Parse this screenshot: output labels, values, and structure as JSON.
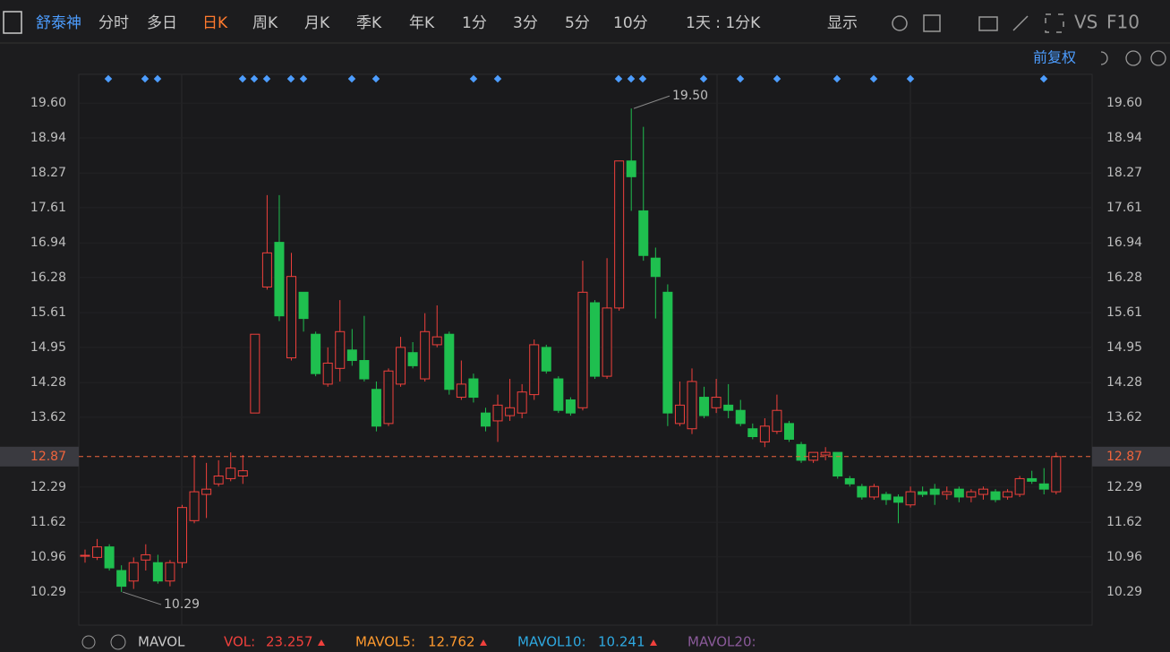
{
  "toolbar": {
    "stock": "舒泰神",
    "tabs": [
      "分时",
      "多日",
      "日K",
      "周K",
      "月K",
      "季K",
      "年K",
      "1分",
      "3分",
      "5分",
      "10分"
    ],
    "period": "1天 : 1分K",
    "display": "显示",
    "vs": "VS",
    "f10": "F10"
  },
  "adjust": "前复权",
  "chart_data": {
    "type": "candlestick",
    "categories": [
      null,
      null,
      null,
      null,
      null,
      null,
      null,
      null,
      null,
      null,
      null,
      null,
      null,
      null,
      null,
      null,
      null,
      null,
      null,
      null,
      null,
      null,
      null,
      null,
      null,
      null,
      null,
      null,
      null,
      null,
      null,
      null,
      null,
      null,
      null,
      null,
      null,
      null,
      null,
      null,
      null,
      null,
      null,
      null,
      null,
      null,
      null,
      null,
      null,
      null,
      null,
      null,
      null,
      null,
      null,
      null,
      null,
      null,
      null,
      null,
      null,
      null,
      null,
      null,
      null,
      null,
      null,
      null,
      null,
      null,
      null,
      null,
      null,
      null,
      null,
      null,
      null,
      null,
      null,
      null,
      null
    ],
    "open": [
      10.98,
      10.95,
      11.15,
      10.7,
      10.5,
      10.9,
      10.85,
      10.5,
      10.85,
      11.65,
      12.15,
      12.35,
      12.45,
      12.5,
      13.7,
      16.1,
      16.95,
      14.75,
      16.0,
      15.2,
      14.25,
      14.55,
      14.9,
      14.7,
      14.15,
      13.5,
      14.25,
      14.85,
      14.35,
      15.0,
      15.2,
      14.0,
      14.35,
      13.7,
      13.55,
      13.65,
      13.7,
      14.05,
      14.95,
      14.35,
      13.95,
      13.8,
      15.8,
      14.4,
      15.7,
      18.5,
      17.55,
      16.65,
      16.0,
      13.5,
      13.4,
      14.0,
      13.8,
      13.85,
      13.75,
      13.4,
      13.15,
      13.35,
      13.5,
      13.1,
      12.8,
      12.9,
      12.95,
      12.45,
      12.3,
      12.1,
      12.15,
      12.1,
      11.95,
      12.2,
      12.25,
      12.15,
      12.25,
      12.1,
      12.15,
      12.2,
      12.1,
      12.15,
      12.45,
      12.35,
      12.2
    ],
    "high": [
      11.1,
      11.3,
      11.2,
      10.8,
      10.95,
      11.2,
      11.0,
      10.9,
      11.95,
      12.9,
      12.75,
      12.8,
      12.95,
      12.9,
      15.2,
      17.85,
      17.85,
      16.75,
      16.0,
      15.25,
      14.95,
      15.85,
      15.3,
      15.55,
      14.3,
      14.55,
      15.15,
      15.05,
      15.6,
      15.75,
      15.25,
      14.7,
      14.45,
      13.8,
      14.05,
      14.35,
      14.25,
      15.1,
      15.0,
      14.4,
      14.0,
      16.6,
      15.85,
      16.65,
      18.5,
      19.5,
      19.15,
      16.85,
      16.15,
      14.3,
      14.55,
      14.2,
      14.35,
      14.25,
      13.95,
      13.5,
      13.6,
      14.05,
      13.55,
      13.15,
      12.95,
      13.05,
      12.95,
      12.5,
      12.35,
      12.35,
      12.2,
      12.15,
      12.3,
      12.3,
      12.35,
      12.3,
      12.3,
      12.25,
      12.3,
      12.25,
      12.25,
      12.5,
      12.6,
      12.65,
      12.95
    ],
    "low": [
      10.85,
      10.9,
      10.7,
      10.29,
      10.35,
      10.7,
      10.45,
      10.4,
      10.75,
      11.6,
      11.7,
      12.3,
      12.4,
      12.35,
      13.7,
      16.05,
      15.45,
      14.7,
      15.25,
      14.4,
      14.2,
      14.3,
      14.6,
      14.3,
      13.35,
      13.45,
      14.2,
      14.55,
      14.3,
      14.95,
      14.05,
      13.95,
      13.9,
      13.35,
      13.15,
      13.55,
      13.6,
      13.95,
      14.45,
      13.7,
      13.65,
      13.75,
      14.35,
      14.35,
      15.65,
      17.55,
      16.6,
      15.5,
      13.45,
      13.45,
      13.3,
      13.6,
      13.7,
      13.6,
      13.45,
      13.2,
      13.05,
      13.3,
      13.15,
      12.75,
      12.75,
      12.8,
      12.45,
      12.3,
      12.05,
      12.05,
      11.95,
      11.6,
      11.9,
      12.1,
      11.95,
      12.05,
      12.0,
      12.0,
      12.05,
      12.0,
      12.05,
      12.1,
      12.35,
      12.15,
      12.15
    ],
    "close": [
      10.99,
      11.15,
      10.75,
      10.4,
      10.85,
      11.0,
      10.5,
      10.85,
      11.9,
      12.2,
      12.25,
      12.5,
      12.65,
      12.6,
      15.2,
      16.75,
      15.55,
      16.3,
      15.5,
      14.45,
      14.65,
      15.25,
      14.7,
      14.35,
      13.45,
      14.5,
      14.95,
      14.6,
      15.25,
      15.15,
      14.15,
      14.25,
      14.0,
      13.45,
      13.85,
      13.8,
      14.1,
      15.0,
      14.5,
      13.75,
      13.7,
      16.0,
      14.4,
      15.7,
      18.5,
      18.2,
      16.7,
      16.3,
      13.7,
      13.85,
      14.3,
      13.65,
      14.0,
      13.75,
      13.5,
      13.25,
      13.45,
      13.75,
      13.2,
      12.8,
      12.95,
      12.95,
      12.5,
      12.35,
      12.1,
      12.3,
      12.05,
      12.0,
      12.2,
      12.15,
      12.15,
      12.2,
      12.1,
      12.2,
      12.25,
      12.05,
      12.2,
      12.45,
      12.4,
      12.25,
      12.87
    ],
    "up_color": "#f0403c",
    "down_color": "#1fbf4f",
    "ylim": [
      9.66,
      20.15
    ],
    "yticks": [
      {
        "value": 19.6,
        "label": "19.60"
      },
      18.94,
      18.27,
      17.61,
      16.94,
      16.28,
      15.61,
      14.95,
      14.28,
      13.62,
      12.29,
      11.62,
      10.96,
      10.29
    ],
    "last_price": 12.87,
    "annotations": [
      {
        "value": 19.5,
        "label": "19.50"
      },
      {
        "value": 10.29,
        "label": "10.29"
      }
    ]
  },
  "footer": {
    "indicator": "MAVOL",
    "items": [
      {
        "label": "VOL:",
        "value": 23.257
      },
      {
        "label": "MAVOL5:",
        "value": 12.762
      },
      {
        "label": "MAVOL10:",
        "value": 10.241
      },
      {
        "label": "MAVOL20:"
      }
    ]
  }
}
